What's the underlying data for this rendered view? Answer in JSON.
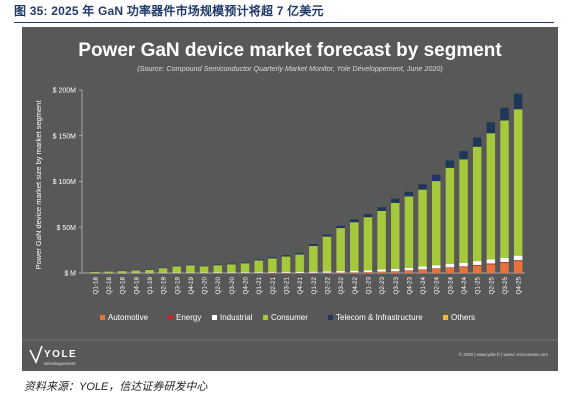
{
  "figure_caption": "图 35:  2025 年 GaN 功率器件市场规模预计将超 7 亿美元",
  "source_note": "资料来源：YOLE，信达证券研发中心",
  "logo": {
    "text": "YOLE",
    "subtext": "Développement"
  },
  "copyright": "© 2020 | www.yole.fr | www.i-micronews.com",
  "colors": {
    "panel": "#585858",
    "Automotive": "#e8733a",
    "Energy": "#c0272d",
    "Industrial": "#ffffff",
    "Consumer": "#a6c93b",
    "Telecom & Infrastructure": "#1f3759",
    "Others": "#f2b732"
  },
  "chart_data": {
    "type": "bar",
    "stacked": true,
    "title": "Power GaN device market forecast by segment",
    "subtitle": "(Source: Compound Semiconductor Quarterly Market Monitor, Yole Développement, June 2020)",
    "ylabel": "Power GaN device market size by market segment",
    "xlabel": "",
    "ylim": [
      0,
      200
    ],
    "yticks": [
      0,
      50,
      100,
      150,
      200
    ],
    "ytick_labels": [
      "$ M",
      "$ 50M",
      "$ 100M",
      "$ 150M",
      "$ 200M"
    ],
    "grid": false,
    "legend_position": "bottom",
    "categories": [
      "Q1-18",
      "Q2-18",
      "Q3-18",
      "Q4-18",
      "Q1-19",
      "Q2-19",
      "Q3-19",
      "Q4-19",
      "Q1-20",
      "Q2-20",
      "Q3-20",
      "Q4-20",
      "Q1-21",
      "Q2-21",
      "Q3-21",
      "Q4-21",
      "Q1-22",
      "Q2-22",
      "Q3-22",
      "Q4-22",
      "Q1-23",
      "Q2-23",
      "Q3-23",
      "Q4-23",
      "Q1-24",
      "Q2-24",
      "Q3-24",
      "Q4-24",
      "Q1-25",
      "Q2-25",
      "Q3-25",
      "Q4-25"
    ],
    "series": [
      {
        "name": "Automotive",
        "values": [
          0,
          0,
          0,
          0,
          0,
          0,
          0,
          0,
          0,
          0,
          0,
          0,
          0,
          0.1,
          0.1,
          0.2,
          0.3,
          0.4,
          0.5,
          0.7,
          1,
          1.5,
          2,
          2.5,
          3.5,
          4.5,
          5.5,
          6.5,
          8,
          9.5,
          11,
          13
        ]
      },
      {
        "name": "Energy",
        "values": [
          0,
          0,
          0,
          0,
          0,
          0,
          0,
          0,
          0,
          0,
          0,
          0,
          0,
          0,
          0,
          0,
          0,
          0,
          0,
          0,
          0,
          0,
          0,
          0.3,
          0.4,
          0.5,
          0.6,
          0.7,
          0.8,
          0.9,
          1,
          1
        ]
      },
      {
        "name": "Industrial",
        "values": [
          0.2,
          0.2,
          0.2,
          0.3,
          0.3,
          0.3,
          0.4,
          0.4,
          0.4,
          0.5,
          0.5,
          0.6,
          0.7,
          0.8,
          0.9,
          1,
          1.2,
          1.4,
          1.6,
          1.8,
          2,
          2.3,
          2.6,
          2.9,
          3.2,
          3.5,
          3.8,
          4,
          4.2,
          4.4,
          4.7,
          5
        ]
      },
      {
        "name": "Consumer",
        "values": [
          1,
          1.5,
          2,
          2.5,
          3,
          5,
          7,
          8,
          7,
          8,
          9,
          10,
          13,
          15,
          17,
          19,
          28,
          38,
          47,
          53,
          58,
          64,
          72,
          78,
          84,
          92,
          105,
          113,
          125,
          138,
          150,
          160
        ]
      },
      {
        "name": "Telecom & Infrastructure",
        "values": [
          0.3,
          0.3,
          0.3,
          0.4,
          0.4,
          0.5,
          0.6,
          0.6,
          0.6,
          0.7,
          0.8,
          0.9,
          1,
          1.2,
          1.4,
          1.6,
          2,
          2.3,
          2.6,
          3,
          3.5,
          4,
          4.5,
          5,
          6,
          7,
          8,
          9,
          10,
          12,
          14,
          17
        ]
      },
      {
        "name": "Others",
        "values": [
          0,
          0,
          0,
          0,
          0,
          0,
          0,
          0,
          0,
          0,
          0,
          0,
          0,
          0,
          0,
          0,
          0,
          0,
          0,
          0,
          0,
          0,
          0,
          0,
          0,
          0,
          0,
          0,
          0,
          0,
          0,
          0
        ]
      }
    ]
  }
}
